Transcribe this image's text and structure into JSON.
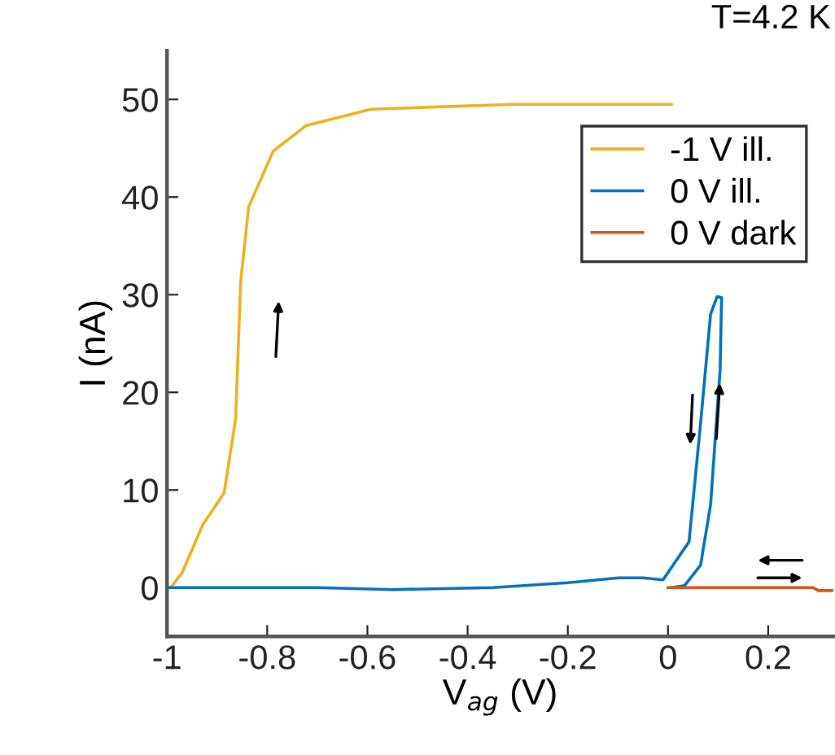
{
  "chart_data": {
    "type": "line",
    "xlabel": "V$_{ag}$ (V)",
    "ylabel": "I (nA)",
    "annotations": [
      "T=4.2 K"
    ],
    "series": [
      {
        "name": "-1 V ill.",
        "color": "#edb120",
        "x": [
          -1.0,
          -0.993,
          -0.97,
          -0.928,
          -0.886,
          -0.863,
          -0.853,
          -0.837,
          -0.788,
          -0.723,
          -0.593,
          -0.31,
          0.007
        ],
        "values": [
          0,
          0,
          1.5,
          6.5,
          9.7,
          17.3,
          31.3,
          39,
          44.7,
          47.3,
          49,
          49.5,
          49.5
        ]
      },
      {
        "name": "0 V ill.",
        "color": "#0072bd",
        "x": [
          0.007,
          0.033,
          0.065,
          0.085,
          0.104,
          0.107,
          0.098,
          0.085,
          0.065,
          0.042,
          0.01,
          -0.01,
          -0.05,
          -0.098,
          -0.2,
          -0.35,
          -0.55,
          -0.7,
          -1.0
        ],
        "values": [
          0,
          0.2,
          2.3,
          8.5,
          22.3,
          29.7,
          29.8,
          28,
          16.8,
          4.7,
          2.3,
          0.8,
          1.0,
          1.0,
          0.5,
          0,
          -0.2,
          0,
          0
        ]
      },
      {
        "name": "0 V dark",
        "color": "#d95319",
        "x": [
          0.0,
          0.29,
          0.3,
          0.31,
          0.33
        ],
        "values": [
          0,
          0,
          -0.3,
          -0.3,
          -0.3
        ]
      }
    ],
    "xlim": [
      -1,
      0.33
    ],
    "ylim": [
      -5,
      55
    ],
    "xticks": [
      -1,
      -0.8,
      -0.6,
      -0.4,
      -0.2,
      0,
      0.2
    ],
    "yticks": [
      0,
      10,
      20,
      30,
      40,
      50
    ],
    "legend": "top right",
    "grid": false,
    "marker": "none",
    "line_style": "solid"
  }
}
